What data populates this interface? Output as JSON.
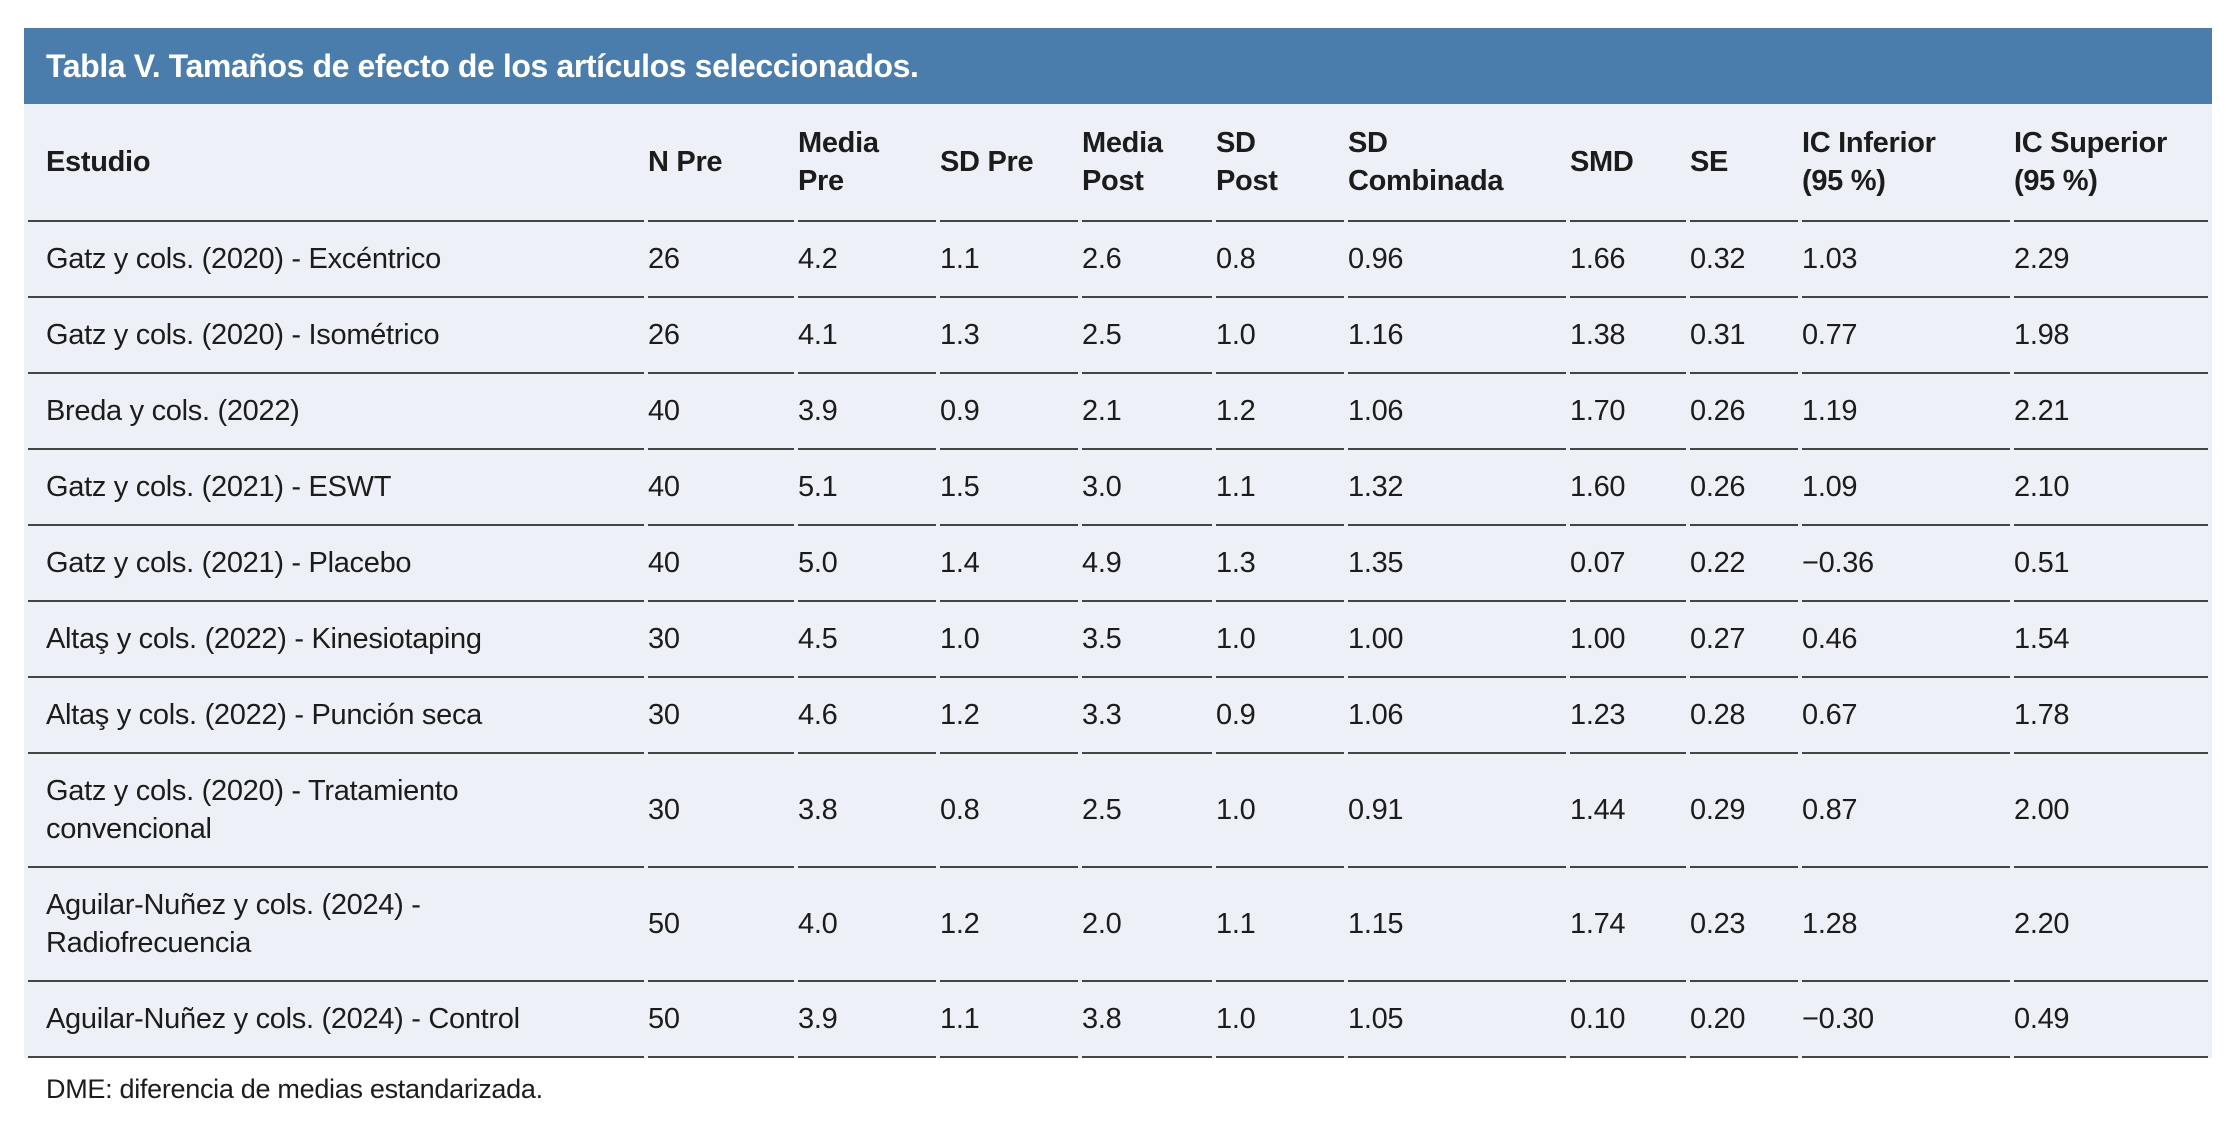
{
  "title": "Tabla V. Tamaños de efecto de los artículos seleccionados.",
  "colors": {
    "title_bar_background": "#4A7DAB",
    "title_text": "#FFFFFF",
    "table_background": "#EDF0F7",
    "divider_line": "#454545",
    "body_text": "#1C1C1C"
  },
  "table": {
    "columns": [
      "Estudio",
      "N Pre",
      "Media Pre",
      "SD Pre",
      "Media Post",
      "SD Post",
      "SD Combinada",
      "SMD",
      "SE",
      "IC Inferior (95 %)",
      "IC Superior (95 %)"
    ],
    "rows": [
      [
        "Gatz y cols. (2020) - Excéntrico",
        "26",
        "4.2",
        "1.1",
        "2.6",
        "0.8",
        "0.96",
        "1.66",
        "0.32",
        "1.03",
        "2.29"
      ],
      [
        "Gatz y cols. (2020) - Isométrico",
        "26",
        "4.1",
        "1.3",
        "2.5",
        "1.0",
        "1.16",
        "1.38",
        "0.31",
        "0.77",
        "1.98"
      ],
      [
        "Breda y cols. (2022)",
        "40",
        "3.9",
        "0.9",
        "2.1",
        "1.2",
        "1.06",
        "1.70",
        "0.26",
        "1.19",
        "2.21"
      ],
      [
        "Gatz y cols. (2021) - ESWT",
        "40",
        "5.1",
        "1.5",
        "3.0",
        "1.1",
        "1.32",
        "1.60",
        "0.26",
        "1.09",
        "2.10"
      ],
      [
        "Gatz y cols. (2021) - Placebo",
        "40",
        "5.0",
        "1.4",
        "4.9",
        "1.3",
        "1.35",
        "0.07",
        "0.22",
        "−0.36",
        "0.51"
      ],
      [
        "Altaş y cols. (2022) - Kinesiotaping",
        "30",
        "4.5",
        "1.0",
        "3.5",
        "1.0",
        "1.00",
        "1.00",
        "0.27",
        "0.46",
        "1.54"
      ],
      [
        "Altaş y cols. (2022) - Punción seca",
        "30",
        "4.6",
        "1.2",
        "3.3",
        "0.9",
        "1.06",
        "1.23",
        "0.28",
        "0.67",
        "1.78"
      ],
      [
        "Gatz y cols. (2020) - Tratamiento convencional",
        "30",
        "3.8",
        "0.8",
        "2.5",
        "1.0",
        "0.91",
        "1.44",
        "0.29",
        "0.87",
        "2.00"
      ],
      [
        "Aguilar-Nuñez y cols. (2024) - Radiofrecuencia",
        "50",
        "4.0",
        "1.2",
        "2.0",
        "1.1",
        "1.15",
        "1.74",
        "0.23",
        "1.28",
        "2.20"
      ],
      [
        "Aguilar-Nuñez y cols. (2024) - Control",
        "50",
        "3.9",
        "1.1",
        "3.8",
        "1.0",
        "1.05",
        "0.10",
        "0.20",
        "−0.30",
        "0.49"
      ]
    ]
  },
  "footnote": "DME: diferencia de medias estandarizada."
}
